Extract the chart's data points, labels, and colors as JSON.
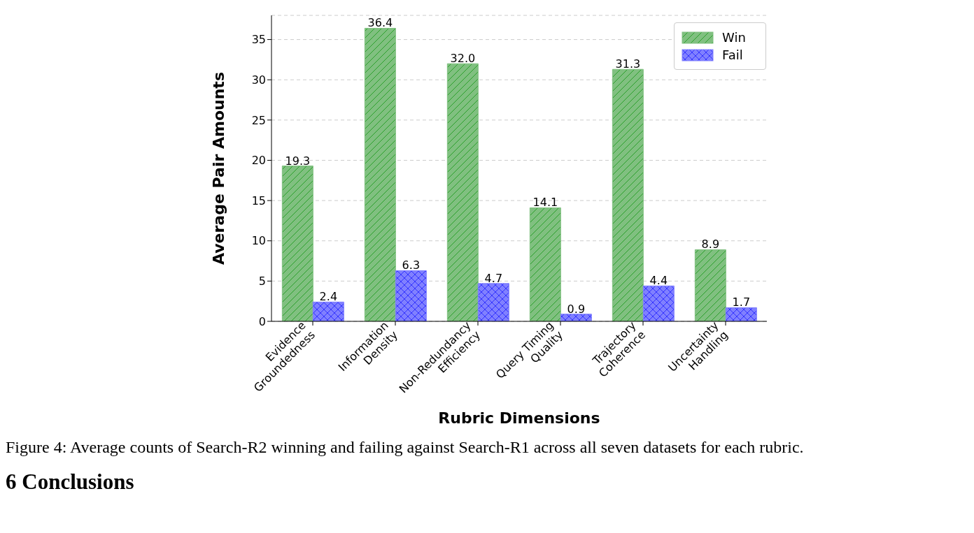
{
  "chart_data": {
    "type": "bar",
    "xlabel": "Rubric Dimensions",
    "ylabel": "Average Pair Amounts",
    "categories": [
      "Evidence\nGroundedness",
      "Information\nDensity",
      "Non-Redundancy\nEfficiency",
      "Query Timing\nQuality",
      "Trajectory\nCoherence",
      "Uncertainty\nHandling"
    ],
    "series": [
      {
        "name": "Win",
        "color": "#80c080",
        "values": [
          19.3,
          36.4,
          32.0,
          14.1,
          31.3,
          8.9
        ],
        "value_labels": [
          "19.3",
          "36.4",
          "32.0",
          "14.1",
          "31.3",
          "8.9"
        ]
      },
      {
        "name": "Fail",
        "color": "#8080ff",
        "values": [
          2.4,
          6.3,
          4.7,
          0.9,
          4.4,
          1.7
        ],
        "value_labels": [
          "2.4",
          "6.3",
          "4.7",
          "0.9",
          "4.4",
          "1.7"
        ]
      }
    ],
    "ylim": [
      0,
      38
    ],
    "yticks": [
      0,
      5,
      10,
      15,
      20,
      25,
      30,
      35
    ],
    "grid": "y",
    "legend": "top right",
    "annotations": [
      "Figure 4: Average counts of Search-R2 winning and failing against Search-R1 across all seven datasets for each rubric.",
      "6 Conclusions"
    ]
  }
}
